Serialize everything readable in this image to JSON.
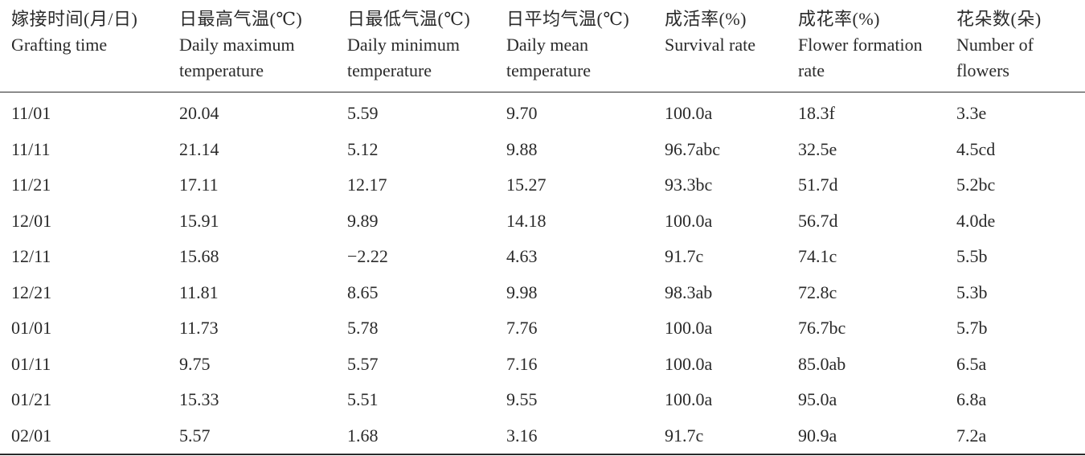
{
  "table": {
    "headers": [
      {
        "zh": "嫁接时间(月/日)",
        "en": "Grafting time"
      },
      {
        "zh": "日最高气温(℃)",
        "en": "Daily maximum temperature"
      },
      {
        "zh": "日最低气温(℃)",
        "en": "Daily minimum temperature"
      },
      {
        "zh": "日平均气温(℃)",
        "en": "Daily mean temperature"
      },
      {
        "zh": "成活率(%)",
        "en": "Survival rate"
      },
      {
        "zh": "成花率(%)",
        "en": "Flower formation rate"
      },
      {
        "zh": "花朵数(朵)",
        "en": "Number of flowers"
      }
    ],
    "rows": [
      [
        "11/01",
        "20.04",
        "5.59",
        "9.70",
        "100.0a",
        "18.3f",
        "3.3e"
      ],
      [
        "11/11",
        "21.14",
        "5.12",
        "9.88",
        "96.7abc",
        "32.5e",
        "4.5cd"
      ],
      [
        "11/21",
        "17.11",
        "12.17",
        "15.27",
        "93.3bc",
        "51.7d",
        "5.2bc"
      ],
      [
        "12/01",
        "15.91",
        "9.89",
        "14.18",
        "100.0a",
        "56.7d",
        "4.0de"
      ],
      [
        "12/11",
        "15.68",
        "−2.22",
        "4.63",
        "91.7c",
        "74.1c",
        "5.5b"
      ],
      [
        "12/21",
        "11.81",
        "8.65",
        "9.98",
        "98.3ab",
        "72.8c",
        "5.3b"
      ],
      [
        "01/01",
        "11.73",
        "5.78",
        "7.76",
        "100.0a",
        "76.7bc",
        "5.7b"
      ],
      [
        "01/11",
        "9.75",
        "5.57",
        "7.16",
        "100.0a",
        "85.0ab",
        "6.5a"
      ],
      [
        "01/21",
        "15.33",
        "5.51",
        "9.55",
        "100.0a",
        "95.0a",
        "6.8a"
      ],
      [
        "02/01",
        "5.57",
        "1.68",
        "3.16",
        "91.7c",
        "90.9a",
        "7.2a"
      ]
    ]
  }
}
